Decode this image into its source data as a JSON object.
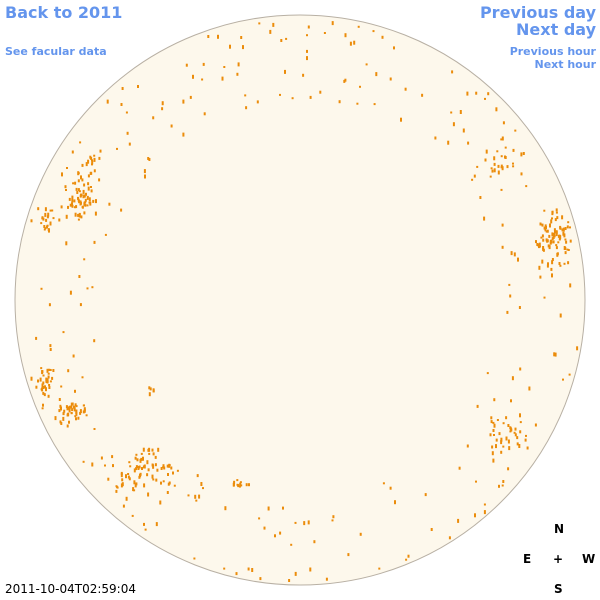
{
  "navigation": {
    "back": "Back to 2011",
    "facular": "See facular data",
    "previous_day": "Previous day",
    "next_day": "Next day",
    "previous_hour": "Previous hour",
    "next_hour": "Next hour"
  },
  "compass": {
    "north": "N",
    "east": "E",
    "center": "+",
    "west": "W",
    "south": "S"
  },
  "timestamp": "2011-10-04T02:59:04"
}
